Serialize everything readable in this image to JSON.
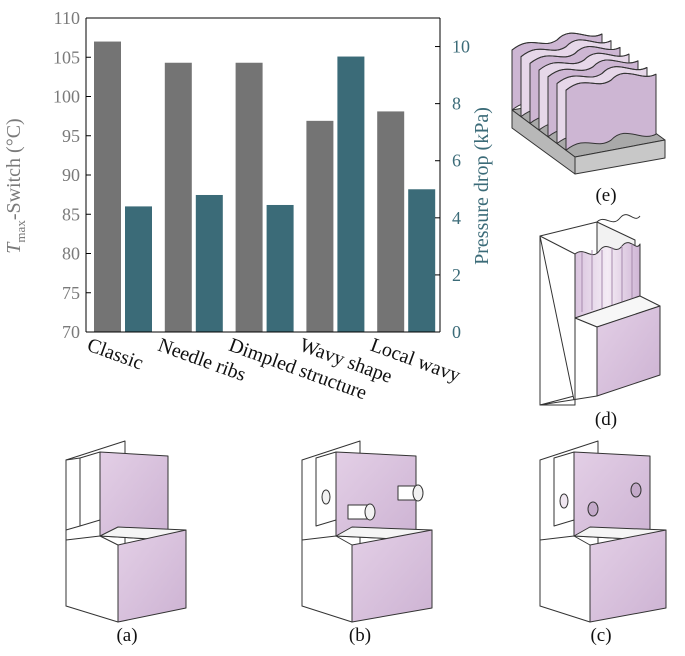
{
  "chart_data": {
    "type": "bar",
    "categories": [
      "Classic",
      "Needle ribs",
      "Dimpled structure",
      "Wavy shape",
      "Local wavy"
    ],
    "series": [
      {
        "name": "",
        "axis": "left",
        "color": "#747474",
        "values": [
          107.0,
          104.3,
          104.3,
          96.9,
          98.1
        ]
      },
      {
        "name": "",
        "axis": "right",
        "color": "#3b6b78",
        "values": [
          4.4,
          4.8,
          4.45,
          9.65,
          5.0
        ]
      }
    ],
    "y_left": {
      "label_main": "T",
      "label_sub": "max",
      "label_rest": "-Switch (°C)",
      "lim": [
        70,
        110
      ],
      "ticks": [
        "70",
        "75",
        "80",
        "85",
        "90",
        "95",
        "100",
        "105",
        "110"
      ],
      "color": "#7a7a7a"
    },
    "y_right": {
      "label": "Pressure drop (kPa)",
      "lim": [
        0,
        11
      ],
      "ticks": [
        "0",
        "2",
        "4",
        "6",
        "8",
        "10"
      ],
      "color": "#3b6b78"
    },
    "grid": false,
    "legend": "none"
  },
  "panels": {
    "a": "(a)",
    "b": "(b)",
    "c": "(c)",
    "d": "(d)",
    "e": "(e)"
  }
}
